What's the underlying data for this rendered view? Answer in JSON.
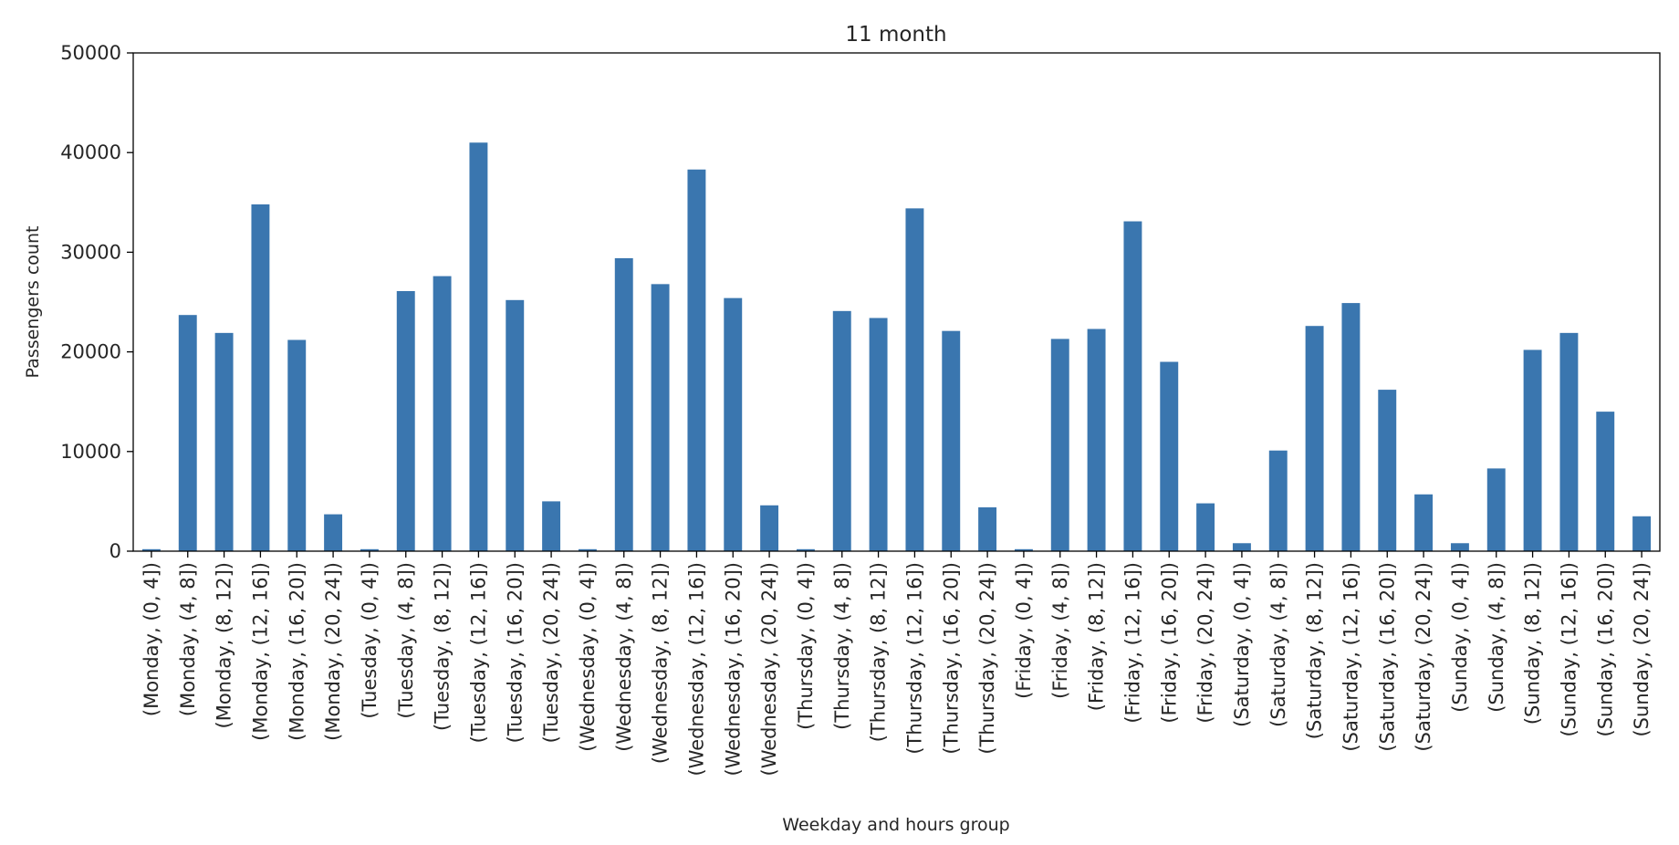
{
  "chart_data": {
    "type": "bar",
    "title": "11 month",
    "xlabel": "Weekday and hours group",
    "ylabel": "Passengers count",
    "ylim": [
      0,
      50000
    ],
    "yticks": [
      "0",
      "10000",
      "20000",
      "30000",
      "40000",
      "50000"
    ],
    "color": "#3a76af",
    "grid": false,
    "legend": "none",
    "categories": [
      "(Monday, (0, 4])",
      "(Monday, (4, 8])",
      "(Monday, (8, 12])",
      "(Monday, (12, 16])",
      "(Monday, (16, 20])",
      "(Monday, (20, 24])",
      "(Tuesday, (0, 4])",
      "(Tuesday, (4, 8])",
      "(Tuesday, (8, 12])",
      "(Tuesday, (12, 16])",
      "(Tuesday, (16, 20])",
      "(Tuesday, (20, 24])",
      "(Wednesday, (0, 4])",
      "(Wednesday, (4, 8])",
      "(Wednesday, (8, 12])",
      "(Wednesday, (12, 16])",
      "(Wednesday, (16, 20])",
      "(Wednesday, (20, 24])",
      "(Thursday, (0, 4])",
      "(Thursday, (4, 8])",
      "(Thursday, (8, 12])",
      "(Thursday, (12, 16])",
      "(Thursday, (16, 20])",
      "(Thursday, (20, 24])",
      "(Friday, (0, 4])",
      "(Friday, (4, 8])",
      "(Friday, (8, 12])",
      "(Friday, (12, 16])",
      "(Friday, (16, 20])",
      "(Friday, (20, 24])",
      "(Saturday, (0, 4])",
      "(Saturday, (4, 8])",
      "(Saturday, (8, 12])",
      "(Saturday, (12, 16])",
      "(Saturday, (16, 20])",
      "(Saturday, (20, 24])",
      "(Sunday, (0, 4])",
      "(Sunday, (4, 8])",
      "(Sunday, (8, 12])",
      "(Sunday, (12, 16])",
      "(Sunday, (16, 20])",
      "(Sunday, (20, 24])"
    ],
    "values": [
      200,
      23700,
      21900,
      34800,
      21200,
      3700,
      200,
      26100,
      27600,
      41000,
      25200,
      5000,
      200,
      29400,
      26800,
      38300,
      25400,
      4600,
      200,
      24100,
      23400,
      34400,
      22100,
      4400,
      200,
      21300,
      22300,
      33100,
      19000,
      4800,
      800,
      10100,
      22600,
      24900,
      16200,
      5700,
      800,
      8300,
      20200,
      21900,
      14000,
      3500
    ]
  }
}
